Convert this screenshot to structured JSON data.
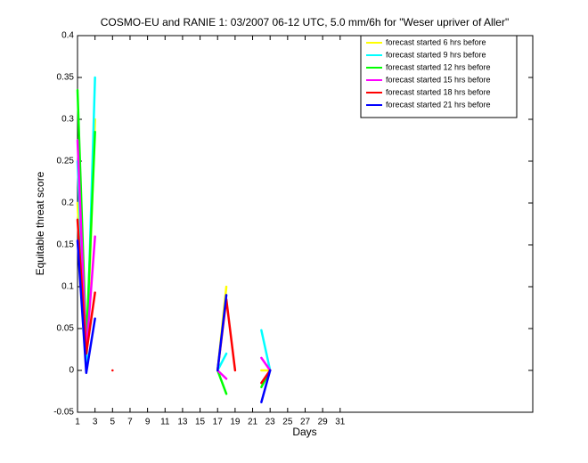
{
  "chart_data": {
    "type": "line",
    "title": "COSMO-EU and RANIE 1: 03/2007 06-12 UTC, 5.0 mm/6h for \"Weser upriver of Aller\"",
    "x_label": "Days",
    "y_label": "Equitable threat score",
    "x": [
      1,
      2,
      3,
      4,
      5,
      6,
      7,
      8,
      9,
      10,
      11,
      12,
      13,
      14,
      15,
      16,
      17,
      18,
      19,
      20,
      21,
      22,
      23
    ],
    "series": [
      {
        "name": "forecast started 6 hrs before",
        "color": "#ffff00",
        "values": [
          0.2,
          0.0,
          0.3,
          null,
          null,
          null,
          null,
          null,
          null,
          null,
          null,
          null,
          null,
          null,
          null,
          null,
          0,
          0.1,
          null,
          null,
          null,
          0.0,
          0
        ]
      },
      {
        "name": "forecast started 9 hrs before",
        "color": "#00ffff",
        "values": [
          0.25,
          0.0,
          0.35,
          null,
          null,
          null,
          null,
          null,
          null,
          null,
          null,
          null,
          null,
          null,
          null,
          null,
          0,
          0.02,
          null,
          null,
          null,
          0.048,
          0
        ]
      },
      {
        "name": "forecast started 12 hrs before",
        "color": "#00ff00",
        "values": [
          0.335,
          0.03,
          0.285,
          null,
          null,
          null,
          null,
          null,
          null,
          null,
          null,
          null,
          null,
          null,
          null,
          null,
          0,
          -0.028,
          null,
          null,
          null,
          -0.02,
          0
        ]
      },
      {
        "name": "forecast started 15 hrs before",
        "color": "#ff00ff",
        "values": [
          0.275,
          0.02,
          0.16,
          null,
          null,
          null,
          null,
          null,
          null,
          null,
          null,
          null,
          null,
          null,
          null,
          null,
          0,
          -0.01,
          null,
          null,
          null,
          0.015,
          0
        ]
      },
      {
        "name": "forecast started 18 hrs before",
        "color": "#ff0000",
        "values": [
          0.18,
          0.02,
          0.093,
          null,
          0,
          null,
          null,
          null,
          null,
          null,
          null,
          null,
          null,
          null,
          null,
          null,
          0,
          0.085,
          0,
          null,
          null,
          -0.015,
          0
        ]
      },
      {
        "name": "forecast started 21 hrs before",
        "color": "#0000ff",
        "values": [
          0.155,
          -0.003,
          0.062,
          null,
          null,
          null,
          null,
          null,
          null,
          null,
          null,
          null,
          null,
          null,
          null,
          null,
          0,
          0.09,
          null,
          null,
          null,
          -0.038,
          0
        ]
      }
    ],
    "xlim": [
      1,
      53
    ],
    "ylim": [
      -0.05,
      0.4
    ],
    "xticks": [
      1,
      3,
      5,
      7,
      9,
      11,
      13,
      15,
      17,
      19,
      21,
      23,
      25,
      27,
      29,
      31
    ],
    "yticks": [
      -0.05,
      0,
      0.05,
      0.1,
      0.15,
      0.2,
      0.25,
      0.3,
      0.35,
      0.4
    ],
    "legend": "upper right"
  }
}
